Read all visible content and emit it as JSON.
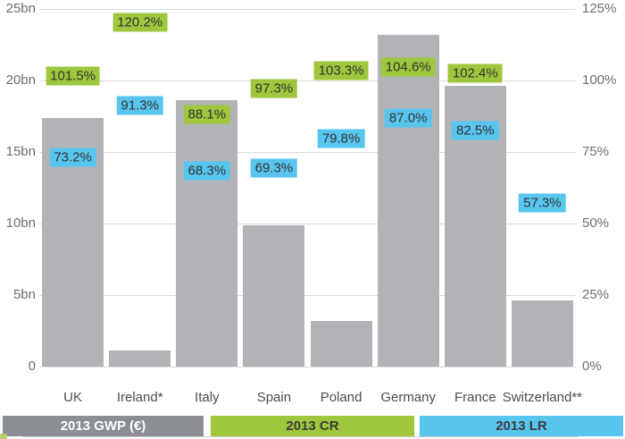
{
  "chart_data": {
    "type": "bar",
    "title": "",
    "categories": [
      "UK",
      "Ireland*",
      "Italy",
      "Spain",
      "Poland",
      "Germany",
      "France",
      "Switzerland**"
    ],
    "series": [
      {
        "name": "2013 GWP (€)",
        "unit": "bn €",
        "values": [
          17.4,
          1.1,
          18.6,
          9.9,
          3.2,
          23.2,
          19.6,
          4.6
        ]
      },
      {
        "name": "2013 CR",
        "unit": "%",
        "values": [
          101.5,
          120.2,
          88.1,
          97.3,
          103.3,
          104.6,
          102.4,
          null
        ]
      },
      {
        "name": "2013 LR",
        "unit": "%",
        "values": [
          73.2,
          91.3,
          68.3,
          69.3,
          79.8,
          87.0,
          82.5,
          57.3
        ]
      }
    ],
    "cr_labels": [
      "101.5%",
      "120.2%",
      "88.1%",
      "97.3%",
      "103.3%",
      "104.6%",
      "102.4%",
      null
    ],
    "lr_labels": [
      "73.2%",
      "91.3%",
      "68.3%",
      "69.3%",
      "79.8%",
      "87.0%",
      "82.5%",
      "57.3%"
    ],
    "left_axis": {
      "ticks": [
        "0",
        "5bn",
        "10bn",
        "15bn",
        "20bn",
        "25bn"
      ],
      "min": 0,
      "max_bn": 25,
      "grid": true
    },
    "right_axis": {
      "ticks": [
        "0%",
        "25%",
        "50%",
        "75%",
        "100%",
        "125%"
      ],
      "min": 0,
      "max_pct": 125
    },
    "legend": [
      {
        "label": "2013 GWP (€)",
        "color": "#8b8e93",
        "text_color": "#ffffff"
      },
      {
        "label": "2013 CR",
        "color": "#9ec73d",
        "text_color": "#3b3b39"
      },
      {
        "label": "2013 LR",
        "color": "#58c5ef",
        "text_color": "#3b3b39"
      }
    ],
    "legend_position": "bottom",
    "colors": {
      "bar": "#b2b3b7",
      "cr_label_bg": "#9ec73d",
      "lr_label_bg": "#58c5ef",
      "grid": "#d9dadb",
      "axis_text": "#6d6e70",
      "category_text": "#4c4c4a",
      "value_text": "#32322f"
    }
  }
}
